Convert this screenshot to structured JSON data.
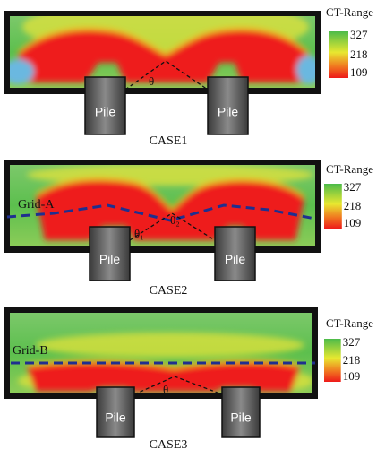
{
  "panels": [
    {
      "legend_title": "CT-Range",
      "legend_ticks": [
        "327",
        "218",
        "109"
      ],
      "piles": [
        "Pile",
        "Pile"
      ],
      "angles": [
        "θ"
      ],
      "caption": "CASE1"
    },
    {
      "legend_title": "CT-Range",
      "legend_ticks": [
        "327",
        "218",
        "109"
      ],
      "grid_label": "Grid-A",
      "piles": [
        "Pile",
        "Pile"
      ],
      "angles": [
        "θ₁",
        "θ₂"
      ],
      "caption": "CASE2"
    },
    {
      "legend_title": "CT-Range",
      "legend_ticks": [
        "327",
        "218",
        "109"
      ],
      "grid_label": "Grid-B",
      "piles": [
        "Pile",
        "Pile"
      ],
      "angles": [
        "θ"
      ],
      "caption": "CASE3"
    }
  ]
}
